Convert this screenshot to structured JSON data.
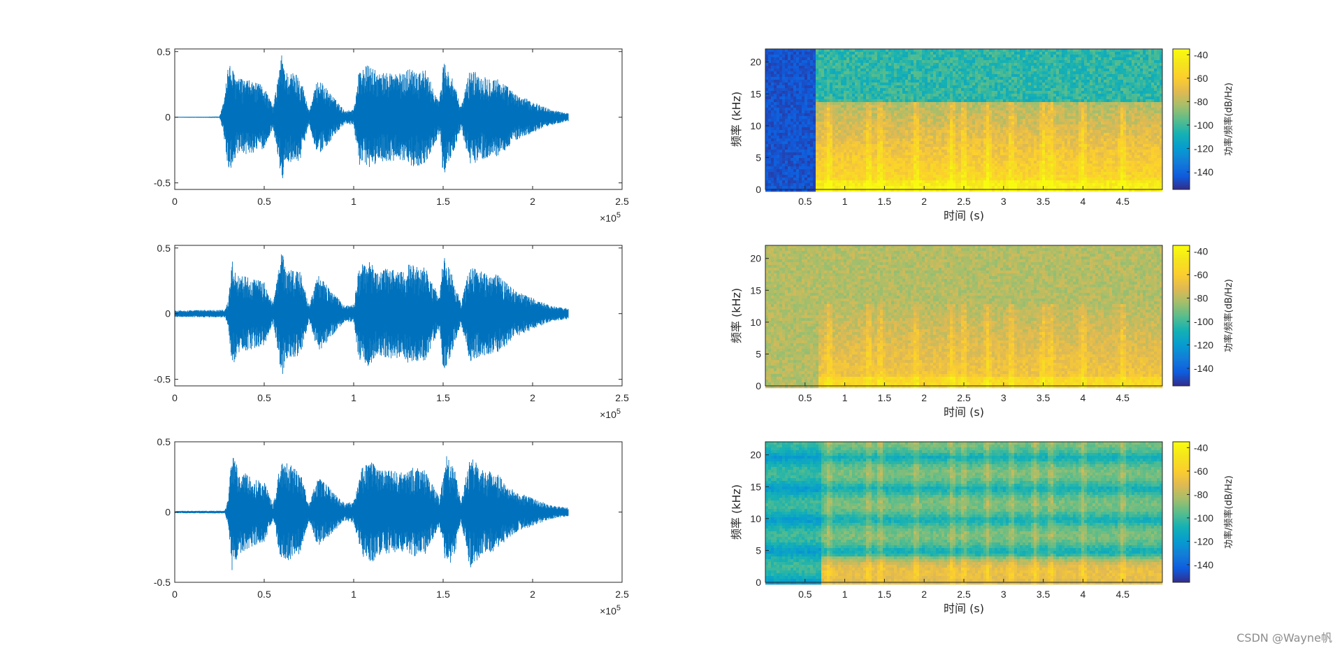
{
  "watermark": "CSDN @Wayne帆",
  "chart_data": [
    {
      "type": "line",
      "panel": "waveform-1",
      "xlim": [
        0,
        250000
      ],
      "ylim": [
        -0.55,
        0.52
      ],
      "xticks": [
        0,
        0.5,
        1,
        1.5,
        2,
        2.5
      ],
      "yticks": [
        -0.5,
        0,
        0.5
      ],
      "x_multiplier": "×10^5",
      "color": "#0072BD",
      "signal_end": 220000,
      "envelope_x": [
        0,
        25000,
        27000,
        30000,
        35000,
        42000,
        50000,
        55000,
        58000,
        60000,
        62000,
        70000,
        75000,
        80000,
        86000,
        95000,
        100000,
        103000,
        108000,
        115000,
        120000,
        128000,
        130000,
        140000,
        148000,
        150000,
        155000,
        160000,
        165000,
        172000,
        180000,
        185000,
        190000,
        200000,
        210000,
        220000
      ],
      "envelope_y": [
        0.002,
        0.005,
        0.1,
        0.42,
        0.3,
        0.28,
        0.24,
        0.08,
        0.33,
        0.5,
        0.35,
        0.33,
        0.05,
        0.3,
        0.2,
        0.05,
        0.06,
        0.36,
        0.4,
        0.33,
        0.35,
        0.33,
        0.38,
        0.36,
        0.12,
        0.45,
        0.3,
        0.08,
        0.37,
        0.32,
        0.3,
        0.25,
        0.18,
        0.12,
        0.06,
        0.03
      ]
    },
    {
      "type": "line",
      "panel": "waveform-2",
      "xlim": [
        0,
        250000
      ],
      "ylim": [
        -0.55,
        0.52
      ],
      "xticks": [
        0,
        0.5,
        1,
        1.5,
        2,
        2.5
      ],
      "yticks": [
        -0.5,
        0,
        0.5
      ],
      "x_multiplier": "×10^5",
      "color": "#0072BD",
      "signal_end": 220000,
      "envelope_x": [
        0,
        28000,
        30000,
        32000,
        35000,
        42000,
        50000,
        55000,
        58000,
        60000,
        62000,
        70000,
        75000,
        80000,
        86000,
        95000,
        100000,
        103000,
        108000,
        115000,
        120000,
        128000,
        130000,
        140000,
        148000,
        150000,
        155000,
        160000,
        165000,
        172000,
        180000,
        185000,
        190000,
        200000,
        210000,
        220000
      ],
      "envelope_y": [
        0.025,
        0.03,
        0.1,
        0.42,
        0.3,
        0.28,
        0.24,
        0.08,
        0.33,
        0.5,
        0.35,
        0.33,
        0.06,
        0.3,
        0.2,
        0.06,
        0.07,
        0.36,
        0.4,
        0.33,
        0.35,
        0.33,
        0.38,
        0.36,
        0.12,
        0.45,
        0.3,
        0.08,
        0.37,
        0.32,
        0.3,
        0.25,
        0.18,
        0.12,
        0.06,
        0.04
      ]
    },
    {
      "type": "line",
      "panel": "waveform-3",
      "xlim": [
        0,
        250000
      ],
      "ylim": [
        -0.5,
        0.5
      ],
      "xticks": [
        0,
        0.5,
        1,
        1.5,
        2,
        2.5
      ],
      "yticks": [
        -0.5,
        0,
        0.5
      ],
      "x_multiplier": "×10^5",
      "color": "#0072BD",
      "signal_end": 220000,
      "envelope_x": [
        0,
        28000,
        30000,
        32000,
        35000,
        42000,
        50000,
        55000,
        58000,
        61000,
        64000,
        70000,
        75000,
        80000,
        86000,
        95000,
        100000,
        105000,
        110000,
        115000,
        120000,
        128000,
        133000,
        140000,
        148000,
        152000,
        157000,
        160000,
        165000,
        172000,
        180000,
        185000,
        190000,
        200000,
        210000,
        220000
      ],
      "envelope_y": [
        0.008,
        0.01,
        0.1,
        0.45,
        0.32,
        0.25,
        0.22,
        0.05,
        0.28,
        0.38,
        0.34,
        0.3,
        0.06,
        0.25,
        0.18,
        0.06,
        0.08,
        0.33,
        0.36,
        0.3,
        0.3,
        0.28,
        0.32,
        0.3,
        0.1,
        0.42,
        0.28,
        0.07,
        0.4,
        0.3,
        0.28,
        0.2,
        0.15,
        0.1,
        0.05,
        0.03
      ]
    },
    {
      "type": "heatmap",
      "panel": "spectrogram-1",
      "xlabel": "时间 (s)",
      "ylabel": "频率 (kHz)",
      "xlim": [
        0,
        5
      ],
      "ylim": [
        0,
        22.05
      ],
      "xticks": [
        0.5,
        1,
        1.5,
        2,
        2.5,
        3,
        3.5,
        4,
        4.5
      ],
      "yticks": [
        0,
        5,
        10,
        15,
        20
      ],
      "colorbar_label": "功率/频率(dB/Hz)",
      "colorbar_ticks": [
        -40,
        -60,
        -80,
        -100,
        -120,
        -140
      ],
      "clim": [
        -155,
        -35
      ],
      "colormap": "parula",
      "onset_time": 0.63,
      "cutoff_khz": 13.8,
      "bursts_s": [
        0.8,
        1.3,
        1.45,
        1.9,
        2.35,
        2.5,
        2.8,
        3.1,
        3.5,
        3.6,
        4.0,
        4.5
      ]
    },
    {
      "type": "heatmap",
      "panel": "spectrogram-2",
      "xlabel": "时间 (s)",
      "ylabel": "频率 (kHz)",
      "xlim": [
        0,
        5
      ],
      "ylim": [
        0,
        22.05
      ],
      "xticks": [
        0.5,
        1,
        1.5,
        2,
        2.5,
        3,
        3.5,
        4,
        4.5
      ],
      "yticks": [
        0,
        5,
        10,
        15,
        20
      ],
      "colorbar_label": "功率/频率(dB/Hz)",
      "colorbar_ticks": [
        -40,
        -60,
        -80,
        -100,
        -120,
        -140
      ],
      "clim": [
        -155,
        -35
      ],
      "colormap": "parula",
      "onset_time": 0.68,
      "bursts_s": [
        0.8,
        1.3,
        1.45,
        1.9,
        2.35,
        2.5,
        2.8,
        3.1,
        3.5,
        3.6,
        4.0,
        4.5
      ]
    },
    {
      "type": "heatmap",
      "panel": "spectrogram-3",
      "xlabel": "时间 (s)",
      "ylabel": "频率 (kHz)",
      "xlim": [
        0,
        5
      ],
      "ylim": [
        0,
        22.05
      ],
      "xticks": [
        0.5,
        1,
        1.5,
        2,
        2.5,
        3,
        3.5,
        4,
        4.5
      ],
      "yticks": [
        0,
        5,
        10,
        15,
        20
      ],
      "colorbar_label": "功率/频率(dB/Hz)",
      "colorbar_ticks": [
        -40,
        -60,
        -80,
        -100,
        -120,
        -140
      ],
      "clim": [
        -155,
        -35
      ],
      "colormap": "parula",
      "onset_time": 0.7,
      "bursts_s": [
        0.8,
        1.3,
        1.45,
        1.9,
        2.35,
        2.5,
        2.8,
        3.1,
        3.4,
        3.6,
        4.0,
        4.5
      ]
    }
  ]
}
